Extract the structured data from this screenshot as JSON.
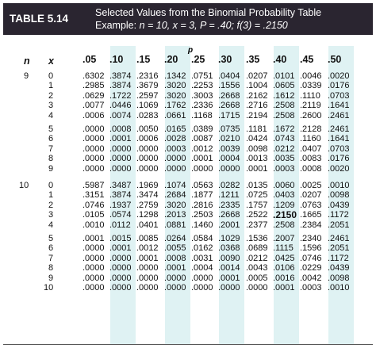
{
  "title_tag": "TABLE 5.14",
  "caption_line1": "Selected Values from the Binomial Probability Table",
  "caption_line2_prefix": "Example: ",
  "caption_example": "n = 10, x = 3, P = .40; f(3) = .2150",
  "p_header": "p",
  "n_header": "n",
  "x_header": "x",
  "p_values": [
    ".05",
    ".10",
    ".15",
    ".20",
    ".25",
    ".30",
    ".35",
    ".40",
    ".45",
    ".50"
  ],
  "colors": {
    "header_bg": "#2a2530",
    "band": "#dff2f3"
  },
  "groups": [
    {
      "n": "9",
      "blocks": [
        [
          [
            "0",
            ".6302",
            ".3874",
            ".2316",
            ".1342",
            ".0751",
            ".0404",
            ".0207",
            ".0101",
            ".0046",
            ".0020"
          ],
          [
            "1",
            ".2985",
            ".3874",
            ".3679",
            ".3020",
            ".2253",
            ".1556",
            ".1004",
            ".0605",
            ".0339",
            ".0176"
          ],
          [
            "2",
            ".0629",
            ".1722",
            ".2597",
            ".3020",
            ".3003",
            ".2668",
            ".2162",
            ".1612",
            ".1110",
            ".0703"
          ],
          [
            "3",
            ".0077",
            ".0446",
            ".1069",
            ".1762",
            ".2336",
            ".2668",
            ".2716",
            ".2508",
            ".2119",
            ".1641"
          ],
          [
            "4",
            ".0006",
            ".0074",
            ".0283",
            ".0661",
            ".1168",
            ".1715",
            ".2194",
            ".2508",
            ".2600",
            ".2461"
          ]
        ],
        [
          [
            "5",
            ".0000",
            ".0008",
            ".0050",
            ".0165",
            ".0389",
            ".0735",
            ".1181",
            ".1672",
            ".2128",
            ".2461"
          ],
          [
            "6",
            ".0000",
            ".0001",
            ".0006",
            ".0028",
            ".0087",
            ".0210",
            ".0424",
            ".0743",
            ".1160",
            ".1641"
          ],
          [
            "7",
            ".0000",
            ".0000",
            ".0000",
            ".0003",
            ".0012",
            ".0039",
            ".0098",
            ".0212",
            ".0407",
            ".0703"
          ],
          [
            "8",
            ".0000",
            ".0000",
            ".0000",
            ".0000",
            ".0001",
            ".0004",
            ".0013",
            ".0035",
            ".0083",
            ".0176"
          ],
          [
            "9",
            ".0000",
            ".0000",
            ".0000",
            ".0000",
            ".0000",
            ".0000",
            ".0001",
            ".0003",
            ".0008",
            ".0020"
          ]
        ]
      ]
    },
    {
      "n": "10",
      "blocks": [
        [
          [
            "0",
            ".5987",
            ".3487",
            ".1969",
            ".1074",
            ".0563",
            ".0282",
            ".0135",
            ".0060",
            ".0025",
            ".0010"
          ],
          [
            "1",
            ".3151",
            ".3874",
            ".3474",
            ".2684",
            ".1877",
            ".1211",
            ".0725",
            ".0403",
            ".0207",
            ".0098"
          ],
          [
            "2",
            ".0746",
            ".1937",
            ".2759",
            ".3020",
            ".2816",
            ".2335",
            ".1757",
            ".1209",
            ".0763",
            ".0439"
          ],
          [
            "3",
            ".0105",
            ".0574",
            ".1298",
            ".2013",
            ".2503",
            ".2668",
            ".2522",
            ".2150",
            ".1665",
            ".1172"
          ],
          [
            "4",
            ".0010",
            ".0112",
            ".0401",
            ".0881",
            ".1460",
            ".2001",
            ".2377",
            ".2508",
            ".2384",
            ".2051"
          ]
        ],
        [
          [
            "5",
            ".0001",
            ".0015",
            ".0085",
            ".0264",
            ".0584",
            ".1029",
            ".1536",
            ".2007",
            ".2340",
            ".2461"
          ],
          [
            "6",
            ".0000",
            ".0001",
            ".0012",
            ".0055",
            ".0162",
            ".0368",
            ".0689",
            ".1115",
            ".1596",
            ".2051"
          ],
          [
            "7",
            ".0000",
            ".0000",
            ".0001",
            ".0008",
            ".0031",
            ".0090",
            ".0212",
            ".0425",
            ".0746",
            ".1172"
          ],
          [
            "8",
            ".0000",
            ".0000",
            ".0000",
            ".0001",
            ".0004",
            ".0014",
            ".0043",
            ".0106",
            ".0229",
            ".0439"
          ],
          [
            "9",
            ".0000",
            ".0000",
            ".0000",
            ".0000",
            ".0000",
            ".0001",
            ".0005",
            ".0016",
            ".0042",
            ".0098"
          ],
          [
            "10",
            ".0000",
            ".0000",
            ".0000",
            ".0000",
            ".0000",
            ".0000",
            ".0000",
            ".0001",
            ".0003",
            ".0010"
          ]
        ]
      ]
    }
  ],
  "highlight": {
    "n": "10",
    "x": "3",
    "p": ".40"
  }
}
